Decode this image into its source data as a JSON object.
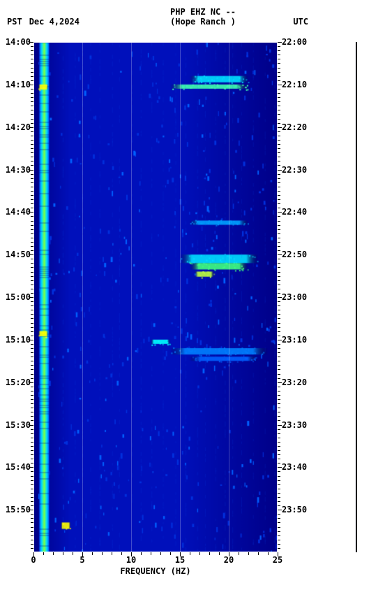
{
  "header": {
    "tz_left": "PST",
    "date": "Dec 4,2024",
    "station_line1": "PHP EHZ NC --",
    "station_line2": "(Hope Ranch )",
    "tz_right": "UTC"
  },
  "spectrogram": {
    "type": "spectrogram",
    "xlabel": "FREQUENCY (HZ)",
    "xlim": [
      0,
      25
    ],
    "xticks": [
      0,
      5,
      10,
      15,
      20,
      25
    ],
    "left_time_ticks": [
      "14:00",
      "14:10",
      "14:20",
      "14:30",
      "14:40",
      "14:50",
      "15:00",
      "15:10",
      "15:20",
      "15:30",
      "15:40",
      "15:50"
    ],
    "right_time_ticks": [
      "22:00",
      "22:10",
      "22:20",
      "22:30",
      "22:40",
      "22:50",
      "23:00",
      "23:10",
      "23:20",
      "23:30",
      "23:40",
      "23:50"
    ],
    "minutes_total": 120,
    "minor_tick_step_min": 1,
    "colors": {
      "bg_dark": "#000088",
      "bg_mid": "#0010bb",
      "bg_light": "#0030dd",
      "cyan": "#00e0ff",
      "green": "#40ff40",
      "yellow": "#ffff00",
      "orange": "#ff8000"
    },
    "low_freq_band": {
      "x_hz": [
        0.6,
        1.6
      ],
      "color_stops": [
        "#0050ff",
        "#00e0ff",
        "#80ff40",
        "#00e0ff",
        "#0050ff"
      ]
    },
    "gridlines_hz": [
      5,
      10,
      15,
      20
    ],
    "bright_events": [
      {
        "t_min": 10,
        "x_hz": [
          0.5,
          1.5
        ],
        "color": "#ffff00",
        "h_min": 1.2
      },
      {
        "t_min": 68,
        "x_hz": [
          0.5,
          1.5
        ],
        "color": "#ffff00",
        "h_min": 1.2
      },
      {
        "t_min": 113,
        "x_hz": [
          2.8,
          3.8
        ],
        "color": "#ffff00",
        "h_min": 1.5
      },
      {
        "t_min": 8,
        "x_hz": [
          16,
          22
        ],
        "color": "#00e0ff",
        "h_min": 1.5
      },
      {
        "t_min": 10,
        "x_hz": [
          14,
          22
        ],
        "color": "#40ffb0",
        "h_min": 1.0
      },
      {
        "t_min": 42,
        "x_hz": [
          16,
          22
        ],
        "color": "#00a0ff",
        "h_min": 1.0
      },
      {
        "t_min": 50,
        "x_hz": [
          15,
          23
        ],
        "color": "#00e0ff",
        "h_min": 2.0
      },
      {
        "t_min": 52,
        "x_hz": [
          16,
          22
        ],
        "color": "#40ff80",
        "h_min": 1.5
      },
      {
        "t_min": 54,
        "x_hz": [
          16.5,
          18.5
        ],
        "color": "#c0ff40",
        "h_min": 1.2
      },
      {
        "t_min": 70,
        "x_hz": [
          12,
          14
        ],
        "color": "#00ffff",
        "h_min": 1.0
      },
      {
        "t_min": 72,
        "x_hz": [
          14,
          24
        ],
        "color": "#0080ff",
        "h_min": 1.5
      },
      {
        "t_min": 74,
        "x_hz": [
          16,
          23
        ],
        "color": "#0060ff",
        "h_min": 1.0
      }
    ],
    "speckle_density": 450
  }
}
